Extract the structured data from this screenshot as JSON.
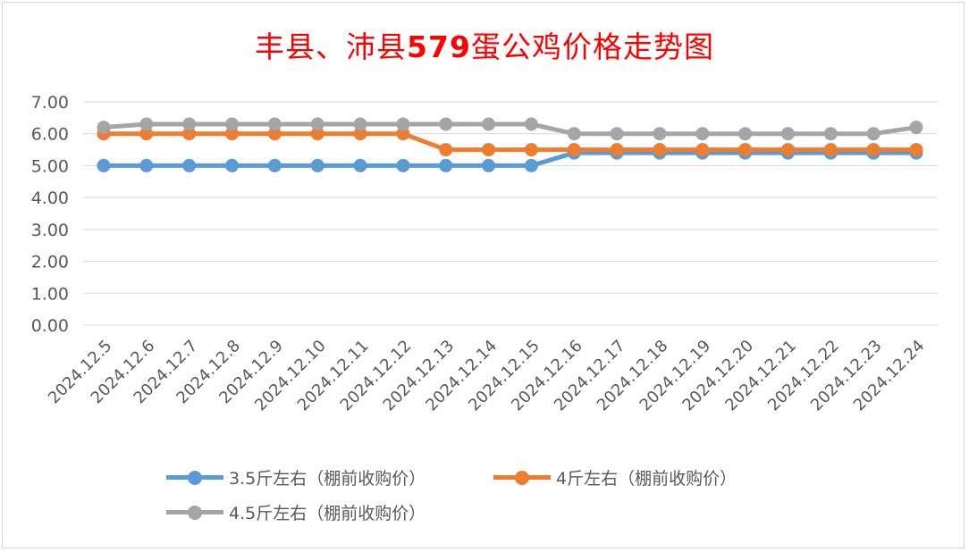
{
  "chart_data": {
    "type": "line",
    "title_part1": "丰县、沛县",
    "title_part2": "579",
    "title_part3": "蛋公鸡价格走势图",
    "categories": [
      "2024.12.5",
      "2024.12.6",
      "2024.12.7",
      "2024.12.8",
      "2024.12.9",
      "2024.12.10",
      "2024.12.11",
      "2024.12.12",
      "2024.12.13",
      "2024.12.14",
      "2024.12.15",
      "2024.12.16",
      "2024.12.17",
      "2024.12.18",
      "2024.12.19",
      "2024.12.20",
      "2024.12.21",
      "2024.12.22",
      "2024.12.23",
      "2024.12.24"
    ],
    "ylim": [
      0,
      7
    ],
    "yticks": [
      "0.00",
      "1.00",
      "2.00",
      "3.00",
      "4.00",
      "5.00",
      "6.00",
      "7.00"
    ],
    "grid": true,
    "legend_position": "bottom",
    "series": [
      {
        "name": "3.5斤左右（棚前收购价）",
        "color": "#5b9bd5",
        "values": [
          5.0,
          5.0,
          5.0,
          5.0,
          5.0,
          5.0,
          5.0,
          5.0,
          5.0,
          5.0,
          5.0,
          5.4,
          5.4,
          5.4,
          5.4,
          5.4,
          5.4,
          5.4,
          5.4,
          5.4
        ]
      },
      {
        "name": "4斤左右（棚前收购价）",
        "color": "#ed7d31",
        "values": [
          6.0,
          6.0,
          6.0,
          6.0,
          6.0,
          6.0,
          6.0,
          6.0,
          5.5,
          5.5,
          5.5,
          5.5,
          5.5,
          5.5,
          5.5,
          5.5,
          5.5,
          5.5,
          5.5,
          5.5
        ]
      },
      {
        "name": "4.5斤左右（棚前收购价）",
        "color": "#a5a5a5",
        "values": [
          6.2,
          6.3,
          6.3,
          6.3,
          6.3,
          6.3,
          6.3,
          6.3,
          6.3,
          6.3,
          6.3,
          6.0,
          6.0,
          6.0,
          6.0,
          6.0,
          6.0,
          6.0,
          6.0,
          6.2
        ]
      }
    ]
  }
}
